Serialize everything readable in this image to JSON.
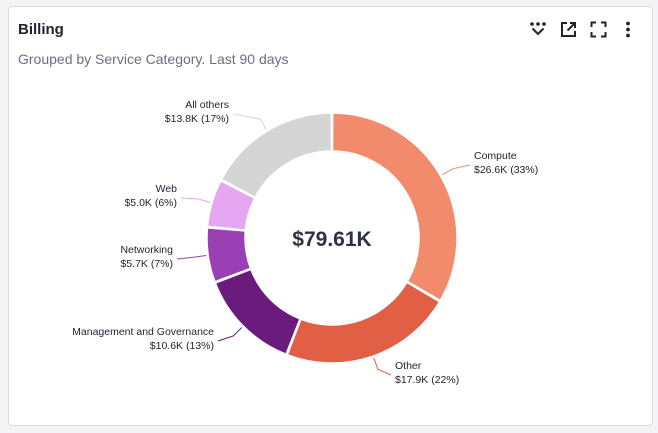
{
  "widget": {
    "title": "Billing",
    "subtitle": "Grouped by Service Category. Last 90 days",
    "actions": [
      "filter-icon",
      "open-external-icon",
      "fullscreen-icon",
      "more-vertical-icon"
    ]
  },
  "chart_data": {
    "type": "pie",
    "variant": "donut",
    "center_label": "$79.61K",
    "total": 79.61,
    "unit": "K USD",
    "slices": [
      {
        "name": "Compute",
        "value": 26.6,
        "value_text": "$26.6K",
        "percent_text": "(33%)",
        "percent": 33,
        "color": "#f28b6b"
      },
      {
        "name": "Other",
        "value": 17.9,
        "value_text": "$17.9K",
        "percent_text": "(22%)",
        "percent": 22,
        "color": "#e05f45"
      },
      {
        "name": "Management and Governance",
        "value": 10.6,
        "value_text": "$10.6K",
        "percent_text": "(13%)",
        "percent": 13,
        "color": "#6b1b7e"
      },
      {
        "name": "Networking",
        "value": 5.7,
        "value_text": "$5.7K",
        "percent_text": "(7%)",
        "percent": 7,
        "color": "#9a3fb4"
      },
      {
        "name": "Web",
        "value": 5.0,
        "value_text": "$5.0K",
        "percent_text": "(6%)",
        "percent": 6,
        "color": "#e5a7f2"
      },
      {
        "name": "All others",
        "value": 13.8,
        "value_text": "$13.8K",
        "percent_text": "(17%)",
        "percent": 17,
        "color": "#d5d5d5"
      }
    ]
  }
}
